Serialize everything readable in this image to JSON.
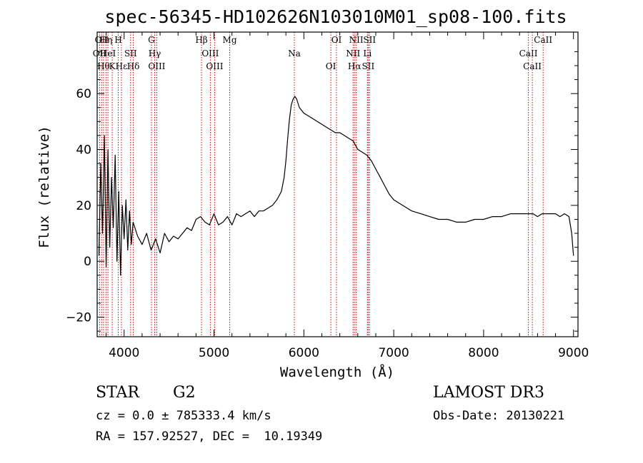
{
  "chart_data": {
    "type": "line",
    "title": "spec-56345-HD102626N103010M01_sp08-100.fits",
    "xlabel": "Wavelength (Å)",
    "ylabel": "Flux (relative)",
    "xlim": [
      3700,
      9050
    ],
    "ylim": [
      -27,
      82
    ],
    "x_ticks": [
      4000,
      5000,
      6000,
      7000,
      8000,
      9000
    ],
    "y_ticks": [
      -20,
      0,
      20,
      40,
      60
    ],
    "grid": false,
    "series": [
      {
        "color": "#000000",
        "points": [
          [
            3720,
            2
          ],
          [
            3740,
            35
          ],
          [
            3760,
            10
          ],
          [
            3780,
            45
          ],
          [
            3800,
            -2
          ],
          [
            3820,
            40
          ],
          [
            3840,
            5
          ],
          [
            3860,
            30
          ],
          [
            3880,
            12
          ],
          [
            3900,
            38
          ],
          [
            3920,
            0
          ],
          [
            3940,
            25
          ],
          [
            3960,
            -5
          ],
          [
            3980,
            20
          ],
          [
            4000,
            8
          ],
          [
            4020,
            22
          ],
          [
            4040,
            4
          ],
          [
            4060,
            18
          ],
          [
            4080,
            6
          ],
          [
            4100,
            14
          ],
          [
            4150,
            9
          ],
          [
            4200,
            6
          ],
          [
            4250,
            10
          ],
          [
            4300,
            4
          ],
          [
            4350,
            8
          ],
          [
            4400,
            3
          ],
          [
            4450,
            10
          ],
          [
            4500,
            7
          ],
          [
            4550,
            9
          ],
          [
            4600,
            8
          ],
          [
            4650,
            10
          ],
          [
            4700,
            12
          ],
          [
            4750,
            11
          ],
          [
            4800,
            15
          ],
          [
            4850,
            16
          ],
          [
            4900,
            14
          ],
          [
            4950,
            13
          ],
          [
            5000,
            17
          ],
          [
            5050,
            13
          ],
          [
            5100,
            14
          ],
          [
            5150,
            16
          ],
          [
            5200,
            13
          ],
          [
            5250,
            17
          ],
          [
            5300,
            16
          ],
          [
            5350,
            17
          ],
          [
            5400,
            18
          ],
          [
            5450,
            16
          ],
          [
            5500,
            18
          ],
          [
            5550,
            18
          ],
          [
            5600,
            19
          ],
          [
            5650,
            20
          ],
          [
            5700,
            22
          ],
          [
            5750,
            25
          ],
          [
            5780,
            30
          ],
          [
            5800,
            36
          ],
          [
            5820,
            44
          ],
          [
            5840,
            51
          ],
          [
            5860,
            56
          ],
          [
            5880,
            58
          ],
          [
            5900,
            59
          ],
          [
            5920,
            58
          ],
          [
            5950,
            55
          ],
          [
            6000,
            53
          ],
          [
            6050,
            52
          ],
          [
            6100,
            51
          ],
          [
            6150,
            50
          ],
          [
            6200,
            49
          ],
          [
            6250,
            48
          ],
          [
            6300,
            47
          ],
          [
            6350,
            46
          ],
          [
            6400,
            46
          ],
          [
            6450,
            45
          ],
          [
            6500,
            44
          ],
          [
            6550,
            43
          ],
          [
            6600,
            40
          ],
          [
            6650,
            39
          ],
          [
            6700,
            38
          ],
          [
            6750,
            36
          ],
          [
            6800,
            33
          ],
          [
            6850,
            30
          ],
          [
            6900,
            27
          ],
          [
            6950,
            24
          ],
          [
            7000,
            22
          ],
          [
            7050,
            21
          ],
          [
            7100,
            20
          ],
          [
            7200,
            18
          ],
          [
            7300,
            17
          ],
          [
            7400,
            16
          ],
          [
            7500,
            15
          ],
          [
            7600,
            15
          ],
          [
            7700,
            14
          ],
          [
            7800,
            14
          ],
          [
            7900,
            15
          ],
          [
            8000,
            15
          ],
          [
            8100,
            16
          ],
          [
            8200,
            16
          ],
          [
            8300,
            17
          ],
          [
            8400,
            17
          ],
          [
            8500,
            17
          ],
          [
            8550,
            17
          ],
          [
            8600,
            16
          ],
          [
            8650,
            17
          ],
          [
            8700,
            17
          ],
          [
            8750,
            17
          ],
          [
            8800,
            17
          ],
          [
            8850,
            16
          ],
          [
            8900,
            17
          ],
          [
            8950,
            16
          ],
          [
            8980,
            10
          ],
          [
            9000,
            2
          ]
        ]
      }
    ],
    "lines": [
      {
        "w": 3727,
        "label": "OII",
        "row": 1
      },
      {
        "w": 3750,
        "label": "OII",
        "row": 0
      },
      {
        "w": 3771,
        "label": "Hθ",
        "row": 2
      },
      {
        "w": 3798,
        "label": "Hη",
        "row": 0
      },
      {
        "w": 3820,
        "label": "HeI",
        "row": 1
      },
      {
        "w": 3868,
        "label": "K",
        "row": 2
      },
      {
        "w": 3934,
        "label": "H",
        "row": 0
      },
      {
        "w": 3970,
        "label": "Hε",
        "row": 2
      },
      {
        "w": 4072,
        "label": "SII",
        "row": 1
      },
      {
        "w": 4102,
        "label": "Hδ",
        "row": 2
      },
      {
        "w": 4304,
        "label": "G",
        "row": 0
      },
      {
        "w": 4340,
        "label": "Hγ",
        "row": 1
      },
      {
        "w": 4363,
        "label": "OIII",
        "row": 2
      },
      {
        "w": 4861,
        "label": "Hβ",
        "row": 0
      },
      {
        "w": 4959,
        "label": "OIII",
        "row": 1
      },
      {
        "w": 5007,
        "label": "OIII",
        "row": 2
      },
      {
        "w": 5175,
        "label": "Mg",
        "row": 0
      },
      {
        "w": 5894,
        "label": "Na",
        "row": 1
      },
      {
        "w": 6300,
        "label": "OI",
        "row": 2
      },
      {
        "w": 6363,
        "label": "OI",
        "row": 0
      },
      {
        "w": 6548,
        "label": "NII",
        "row": 1
      },
      {
        "w": 6563,
        "label": "Hα",
        "row": 2
      },
      {
        "w": 6583,
        "label": "NII",
        "row": 0
      },
      {
        "w": 6707,
        "label": "Li",
        "row": 1
      },
      {
        "w": 6716,
        "label": "SII",
        "row": 2
      },
      {
        "w": 6731,
        "label": "SII",
        "row": 0
      },
      {
        "w": 8498,
        "label": "CaII",
        "row": 1
      },
      {
        "w": 8542,
        "label": "CaII",
        "row": 2
      },
      {
        "w": 8662,
        "label": "CaII",
        "row": 0
      }
    ]
  },
  "footer": {
    "class_type": "STAR",
    "subclass": "G2",
    "survey": "LAMOST DR3",
    "redshift": "cz = 0.0 ± 785333.4 km/s",
    "obs_date": "Obs-Date: 20130221",
    "coords": "RA = 157.92527, DEC =  10.19349"
  }
}
